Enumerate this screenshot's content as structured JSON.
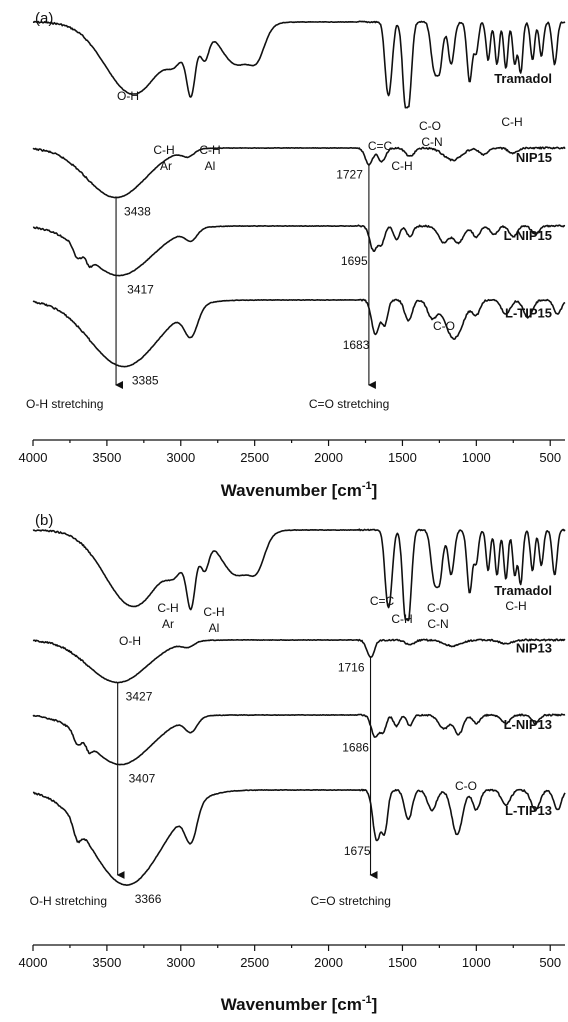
{
  "chart_data": [
    {
      "type": "line",
      "panel_label": "(a)",
      "xlabel": "Wavenumber [cm",
      "xlabel_sup": "-1",
      "xlabel_close": "]",
      "xlim": [
        4000,
        400
      ],
      "x_ticks": [
        "4000",
        "3500",
        "3000",
        "2500",
        "2000",
        "1500",
        "1000",
        "500"
      ],
      "series": [
        {
          "name": "Tramadol",
          "bands": [
            {
              "wn": 3320,
              "d": 0.85,
              "w": 190
            },
            {
              "wn": 3030,
              "d": 0.25,
              "w": 60
            },
            {
              "wn": 2930,
              "d": 0.7,
              "w": 30
            },
            {
              "wn": 2840,
              "d": 0.35,
              "w": 30
            },
            {
              "wn": 2620,
              "d": 0.5,
              "w": 110
            },
            {
              "wn": 2480,
              "d": 0.25,
              "w": 50
            },
            {
              "wn": 1605,
              "d": 0.6,
              "w": 18
            },
            {
              "wn": 1580,
              "d": 0.5,
              "w": 18
            },
            {
              "wn": 1480,
              "d": 0.9,
              "w": 20
            },
            {
              "wn": 1450,
              "d": 0.6,
              "w": 18
            },
            {
              "wn": 1290,
              "d": 0.45,
              "w": 20
            },
            {
              "wn": 1250,
              "d": 0.55,
              "w": 22
            },
            {
              "wn": 1170,
              "d": 0.5,
              "w": 20
            },
            {
              "wn": 1045,
              "d": 0.7,
              "w": 18
            },
            {
              "wn": 1000,
              "d": 0.35,
              "w": 14
            },
            {
              "wn": 920,
              "d": 0.45,
              "w": 14
            },
            {
              "wn": 860,
              "d": 0.5,
              "w": 14
            },
            {
              "wn": 800,
              "d": 0.55,
              "w": 14
            },
            {
              "wn": 740,
              "d": 0.5,
              "w": 14
            },
            {
              "wn": 700,
              "d": 0.6,
              "w": 14
            },
            {
              "wn": 620,
              "d": 0.45,
              "w": 14
            },
            {
              "wn": 560,
              "d": 0.4,
              "w": 14
            },
            {
              "wn": 470,
              "d": 0.5,
              "w": 16
            }
          ]
        },
        {
          "name": "NIP15",
          "bands": [
            {
              "wn": 3438,
              "d": 0.9,
              "w": 200
            },
            {
              "wn": 2950,
              "d": 0.12,
              "w": 40
            },
            {
              "wn": 1727,
              "d": 0.3,
              "w": 25
            },
            {
              "wn": 1640,
              "d": 0.25,
              "w": 25
            },
            {
              "wn": 1450,
              "d": 0.15,
              "w": 30
            },
            {
              "wn": 1160,
              "d": 0.22,
              "w": 60
            },
            {
              "wn": 950,
              "d": 0.12,
              "w": 30
            },
            {
              "wn": 750,
              "d": 0.1,
              "w": 30
            }
          ]
        },
        {
          "name": "L-NIP15",
          "bands": [
            {
              "wn": 3417,
              "d": 0.9,
              "w": 220
            },
            {
              "wn": 3700,
              "d": 0.2,
              "w": 25
            },
            {
              "wn": 3620,
              "d": 0.15,
              "w": 20
            },
            {
              "wn": 2930,
              "d": 0.2,
              "w": 40
            },
            {
              "wn": 1695,
              "d": 0.45,
              "w": 25
            },
            {
              "wn": 1640,
              "d": 0.3,
              "w": 20
            },
            {
              "wn": 1540,
              "d": 0.25,
              "w": 20
            },
            {
              "wn": 1450,
              "d": 0.2,
              "w": 20
            },
            {
              "wn": 1220,
              "d": 0.3,
              "w": 35
            },
            {
              "wn": 1120,
              "d": 0.3,
              "w": 35
            },
            {
              "wn": 1000,
              "d": 0.2,
              "w": 25
            },
            {
              "wn": 880,
              "d": 0.15,
              "w": 25
            },
            {
              "wn": 750,
              "d": 0.2,
              "w": 25
            },
            {
              "wn": 600,
              "d": 0.15,
              "w": 25
            }
          ]
        },
        {
          "name": "L-TIP15",
          "bands": [
            {
              "wn": 3385,
              "d": 0.95,
              "w": 230
            },
            {
              "wn": 2930,
              "d": 0.4,
              "w": 45
            },
            {
              "wn": 1683,
              "d": 0.5,
              "w": 25
            },
            {
              "wn": 1620,
              "d": 0.35,
              "w": 20
            },
            {
              "wn": 1460,
              "d": 0.3,
              "w": 25
            },
            {
              "wn": 1300,
              "d": 0.25,
              "w": 30
            },
            {
              "wn": 1150,
              "d": 0.55,
              "w": 60
            },
            {
              "wn": 1000,
              "d": 0.2,
              "w": 25
            },
            {
              "wn": 800,
              "d": 0.2,
              "w": 30
            },
            {
              "wn": 650,
              "d": 0.25,
              "w": 30
            },
            {
              "wn": 450,
              "d": 0.2,
              "w": 25
            }
          ]
        }
      ],
      "peak_labels": [
        {
          "text": "3438",
          "wn": 3438,
          "series": 1
        },
        {
          "text": "3417",
          "wn": 3417,
          "series": 2
        },
        {
          "text": "3385",
          "wn": 3385,
          "series": 3
        },
        {
          "text": "1727",
          "wn": 1727,
          "series": 1
        },
        {
          "text": "1695",
          "wn": 1695,
          "series": 2
        },
        {
          "text": "1683",
          "wn": 1683,
          "series": 3
        }
      ],
      "band_labels": [
        "O-H",
        "C-H",
        "Ar",
        "C-H",
        "Al",
        "C=C",
        "C-H",
        "C-O",
        "C-N",
        "C-H",
        "C-O"
      ],
      "arrow_labels": [
        "O-H stretching",
        "C=O stretching"
      ],
      "arrows_at": [
        3438,
        1727
      ]
    },
    {
      "type": "line",
      "panel_label": "(b)",
      "xlabel": "Wavenumber [cm",
      "xlabel_sup": "-1",
      "xlabel_close": "]",
      "xlim": [
        4000,
        400
      ],
      "x_ticks": [
        "4000",
        "3500",
        "3000",
        "2500",
        "2000",
        "1500",
        "1000",
        "500"
      ],
      "series": [
        {
          "name": "Tramadol",
          "bands": [
            {
              "wn": 3320,
              "d": 0.85,
              "w": 190
            },
            {
              "wn": 3030,
              "d": 0.25,
              "w": 60
            },
            {
              "wn": 2930,
              "d": 0.7,
              "w": 30
            },
            {
              "wn": 2840,
              "d": 0.35,
              "w": 30
            },
            {
              "wn": 2620,
              "d": 0.5,
              "w": 110
            },
            {
              "wn": 2480,
              "d": 0.25,
              "w": 50
            },
            {
              "wn": 1605,
              "d": 0.6,
              "w": 18
            },
            {
              "wn": 1580,
              "d": 0.5,
              "w": 18
            },
            {
              "wn": 1480,
              "d": 0.9,
              "w": 20
            },
            {
              "wn": 1450,
              "d": 0.6,
              "w": 18
            },
            {
              "wn": 1290,
              "d": 0.45,
              "w": 20
            },
            {
              "wn": 1250,
              "d": 0.55,
              "w": 22
            },
            {
              "wn": 1170,
              "d": 0.5,
              "w": 20
            },
            {
              "wn": 1045,
              "d": 0.7,
              "w": 18
            },
            {
              "wn": 1000,
              "d": 0.35,
              "w": 14
            },
            {
              "wn": 920,
              "d": 0.45,
              "w": 14
            },
            {
              "wn": 860,
              "d": 0.5,
              "w": 14
            },
            {
              "wn": 800,
              "d": 0.55,
              "w": 14
            },
            {
              "wn": 740,
              "d": 0.5,
              "w": 14
            },
            {
              "wn": 700,
              "d": 0.6,
              "w": 14
            },
            {
              "wn": 620,
              "d": 0.45,
              "w": 14
            },
            {
              "wn": 560,
              "d": 0.4,
              "w": 14
            },
            {
              "wn": 470,
              "d": 0.5,
              "w": 16
            }
          ]
        },
        {
          "name": "NIP13",
          "bands": [
            {
              "wn": 3427,
              "d": 0.85,
              "w": 200
            },
            {
              "wn": 2950,
              "d": 0.1,
              "w": 40
            },
            {
              "wn": 1716,
              "d": 0.35,
              "w": 25
            },
            {
              "wn": 1450,
              "d": 0.1,
              "w": 30
            },
            {
              "wn": 1160,
              "d": 0.12,
              "w": 60
            },
            {
              "wn": 800,
              "d": 0.08,
              "w": 40
            }
          ]
        },
        {
          "name": "L-NIP13",
          "bands": [
            {
              "wn": 3407,
              "d": 0.9,
              "w": 210
            },
            {
              "wn": 3700,
              "d": 0.2,
              "w": 25
            },
            {
              "wn": 3620,
              "d": 0.15,
              "w": 20
            },
            {
              "wn": 2930,
              "d": 0.25,
              "w": 40
            },
            {
              "wn": 1686,
              "d": 0.4,
              "w": 25
            },
            {
              "wn": 1630,
              "d": 0.3,
              "w": 20
            },
            {
              "wn": 1540,
              "d": 0.2,
              "w": 20
            },
            {
              "wn": 1450,
              "d": 0.2,
              "w": 20
            },
            {
              "wn": 1220,
              "d": 0.25,
              "w": 35
            },
            {
              "wn": 1120,
              "d": 0.35,
              "w": 30
            },
            {
              "wn": 1000,
              "d": 0.15,
              "w": 25
            },
            {
              "wn": 800,
              "d": 0.15,
              "w": 30
            },
            {
              "wn": 600,
              "d": 0.15,
              "w": 25
            }
          ]
        },
        {
          "name": "L-TIP13",
          "bands": [
            {
              "wn": 3366,
              "d": 0.95,
              "w": 240
            },
            {
              "wn": 3700,
              "d": 0.15,
              "w": 25
            },
            {
              "wn": 2930,
              "d": 0.35,
              "w": 40
            },
            {
              "wn": 1675,
              "d": 0.5,
              "w": 25
            },
            {
              "wn": 1620,
              "d": 0.4,
              "w": 20
            },
            {
              "wn": 1460,
              "d": 0.3,
              "w": 25
            },
            {
              "wn": 1300,
              "d": 0.2,
              "w": 30
            },
            {
              "wn": 1130,
              "d": 0.45,
              "w": 35
            },
            {
              "wn": 1000,
              "d": 0.2,
              "w": 25
            },
            {
              "wn": 800,
              "d": 0.15,
              "w": 30
            },
            {
              "wn": 600,
              "d": 0.2,
              "w": 30
            },
            {
              "wn": 450,
              "d": 0.2,
              "w": 25
            }
          ]
        }
      ],
      "peak_labels": [
        {
          "text": "3427",
          "wn": 3427,
          "series": 1
        },
        {
          "text": "3407",
          "wn": 3407,
          "series": 2
        },
        {
          "text": "3366",
          "wn": 3366,
          "series": 3
        },
        {
          "text": "1716",
          "wn": 1716,
          "series": 1
        },
        {
          "text": "1686",
          "wn": 1686,
          "series": 2
        },
        {
          "text": "1675",
          "wn": 1675,
          "series": 3
        }
      ],
      "band_labels": [
        "O-H",
        "C-H",
        "Ar",
        "C-H",
        "Al",
        "C=C",
        "C-H",
        "C-O",
        "C-N",
        "C-H",
        "C-O"
      ],
      "arrow_labels": [
        "O-H stretching",
        "C=O stretching"
      ],
      "arrows_at": [
        3427,
        1716
      ]
    }
  ]
}
